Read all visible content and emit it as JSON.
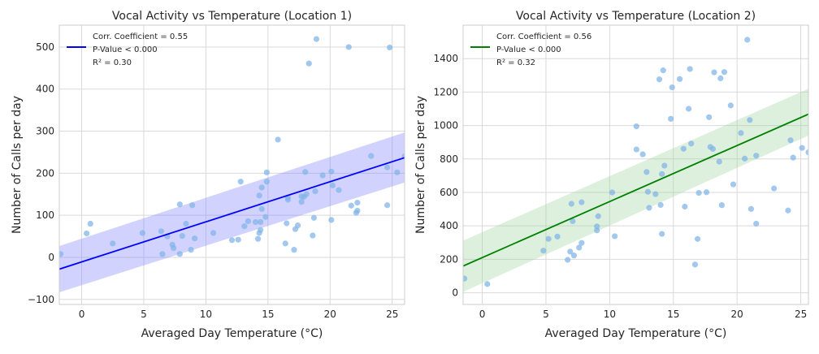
{
  "chart_data": [
    {
      "type": "scatter",
      "title": "Vocal Activity vs Temperature (Location 1)",
      "xlabel": "Averaged Day Temperature (°C)",
      "ylabel": "Number of Calls per day",
      "xlim": [
        -1.8,
        26
      ],
      "ylim": [
        -112,
        552
      ],
      "xticks": [
        0,
        5,
        10,
        15,
        20,
        25
      ],
      "yticks": [
        -100,
        0,
        100,
        200,
        300,
        400,
        500
      ],
      "grid": true,
      "legend": {
        "placement": "top-left",
        "lines": [
          "Corr. Coefficient = 0.55",
          "P-Value < 0.000",
          "R² = 0.30"
        ]
      },
      "point_color": "#7fb3e8",
      "line_color": "#0000ff",
      "band_color": "#7f7fff",
      "regression": {
        "x": [
          -1.8,
          26
        ],
        "y": [
          -28,
          237
        ]
      },
      "confidence_band": {
        "x": [
          -1.8,
          26
        ],
        "lower": [
          -83,
          178
        ],
        "upper": [
          27,
          297
        ]
      },
      "points": [
        [
          -1.7,
          8
        ],
        [
          0.4,
          57
        ],
        [
          0.7,
          80
        ],
        [
          2.5,
          33
        ],
        [
          4.9,
          58
        ],
        [
          6.4,
          62
        ],
        [
          6.5,
          8
        ],
        [
          6.9,
          50
        ],
        [
          7.3,
          30
        ],
        [
          7.4,
          22
        ],
        [
          7.9,
          126
        ],
        [
          7.9,
          8
        ],
        [
          8.1,
          51
        ],
        [
          8.4,
          80
        ],
        [
          8.8,
          18
        ],
        [
          8.9,
          124
        ],
        [
          9.1,
          45
        ],
        [
          10.6,
          58
        ],
        [
          12.1,
          41
        ],
        [
          12.6,
          42
        ],
        [
          12.8,
          180
        ],
        [
          13.1,
          74
        ],
        [
          13.4,
          86
        ],
        [
          14.0,
          84
        ],
        [
          14.2,
          44
        ],
        [
          14.3,
          147
        ],
        [
          14.3,
          58
        ],
        [
          14.4,
          65
        ],
        [
          14.4,
          84
        ],
        [
          14.5,
          115
        ],
        [
          14.5,
          166
        ],
        [
          14.8,
          96
        ],
        [
          14.9,
          202
        ],
        [
          14.9,
          180
        ],
        [
          15.8,
          280
        ],
        [
          16.4,
          33
        ],
        [
          16.5,
          81
        ],
        [
          16.6,
          142
        ],
        [
          16.6,
          137
        ],
        [
          17.1,
          18
        ],
        [
          17.2,
          67
        ],
        [
          17.4,
          76
        ],
        [
          17.7,
          132
        ],
        [
          17.7,
          145
        ],
        [
          17.9,
          144
        ],
        [
          18.0,
          203
        ],
        [
          18.1,
          150
        ],
        [
          18.3,
          461
        ],
        [
          18.6,
          52
        ],
        [
          18.7,
          94
        ],
        [
          18.8,
          157
        ],
        [
          18.9,
          519
        ],
        [
          19.4,
          195
        ],
        [
          20.1,
          89
        ],
        [
          20.1,
          204
        ],
        [
          20.2,
          171
        ],
        [
          20.7,
          160
        ],
        [
          21.5,
          500
        ],
        [
          21.7,
          123
        ],
        [
          22.1,
          106
        ],
        [
          22.2,
          111
        ],
        [
          22.2,
          130
        ],
        [
          23.3,
          241
        ],
        [
          24.6,
          214
        ],
        [
          24.6,
          124
        ],
        [
          24.8,
          499
        ],
        [
          25.4,
          202
        ],
        [
          26.0,
          240
        ]
      ]
    },
    {
      "type": "scatter",
      "title": "Vocal Activity vs Temperature (Location 2)",
      "xlabel": "Averaged Day Temperature (°C)",
      "ylabel": "Number of Calls per day",
      "xlim": [
        -1.5,
        25.6
      ],
      "ylim": [
        -70,
        1600
      ],
      "xticks": [
        0,
        5,
        10,
        15,
        20,
        25
      ],
      "yticks": [
        0,
        200,
        400,
        600,
        800,
        1000,
        1200,
        1400
      ],
      "grid": true,
      "legend": {
        "placement": "top-left",
        "lines": [
          "Corr. Coefficient = 0.56",
          "P-Value < 0.000",
          "R² = 0.32"
        ]
      },
      "point_color": "#7fb3e8",
      "line_color": "#008000",
      "band_color": "#9fd59f",
      "regression": {
        "x": [
          -1.5,
          25.6
        ],
        "y": [
          160,
          1068
        ]
      },
      "confidence_band": {
        "x": [
          -1.5,
          25.6
        ],
        "lower": [
          5,
          940
        ],
        "upper": [
          312,
          1220
        ]
      },
      "points": [
        [
          -1.4,
          85
        ],
        [
          0.4,
          52
        ],
        [
          4.8,
          252
        ],
        [
          5.2,
          322
        ],
        [
          5.9,
          336
        ],
        [
          6.7,
          197
        ],
        [
          6.9,
          246
        ],
        [
          7.0,
          532
        ],
        [
          7.1,
          428
        ],
        [
          7.2,
          223
        ],
        [
          7.6,
          270
        ],
        [
          7.8,
          298
        ],
        [
          7.8,
          541
        ],
        [
          9.0,
          397
        ],
        [
          9.0,
          373
        ],
        [
          9.1,
          458
        ],
        [
          10.2,
          600
        ],
        [
          10.4,
          338
        ],
        [
          12.1,
          995
        ],
        [
          12.1,
          857
        ],
        [
          12.6,
          828
        ],
        [
          12.9,
          722
        ],
        [
          13.0,
          604
        ],
        [
          13.1,
          508
        ],
        [
          13.6,
          590
        ],
        [
          13.9,
          1276
        ],
        [
          14.0,
          525
        ],
        [
          14.1,
          710
        ],
        [
          14.1,
          352
        ],
        [
          14.2,
          1330
        ],
        [
          14.3,
          760
        ],
        [
          14.8,
          1040
        ],
        [
          14.9,
          1228
        ],
        [
          15.5,
          1278
        ],
        [
          15.8,
          861
        ],
        [
          15.9,
          515
        ],
        [
          16.2,
          1100
        ],
        [
          16.3,
          1338
        ],
        [
          16.4,
          892
        ],
        [
          16.7,
          169
        ],
        [
          16.9,
          322
        ],
        [
          17.0,
          597
        ],
        [
          17.6,
          601
        ],
        [
          17.8,
          1050
        ],
        [
          17.9,
          872
        ],
        [
          18.1,
          860
        ],
        [
          18.2,
          1318
        ],
        [
          18.6,
          784
        ],
        [
          18.7,
          1282
        ],
        [
          18.8,
          524
        ],
        [
          19.0,
          1320
        ],
        [
          19.5,
          1120
        ],
        [
          19.7,
          648
        ],
        [
          20.3,
          955
        ],
        [
          20.6,
          802
        ],
        [
          20.8,
          1513
        ],
        [
          21.0,
          1033
        ],
        [
          21.1,
          501
        ],
        [
          21.5,
          820
        ],
        [
          21.5,
          413
        ],
        [
          22.9,
          624
        ],
        [
          24.0,
          492
        ],
        [
          24.2,
          912
        ],
        [
          24.4,
          808
        ],
        [
          25.1,
          866
        ],
        [
          25.6,
          840
        ]
      ]
    }
  ]
}
